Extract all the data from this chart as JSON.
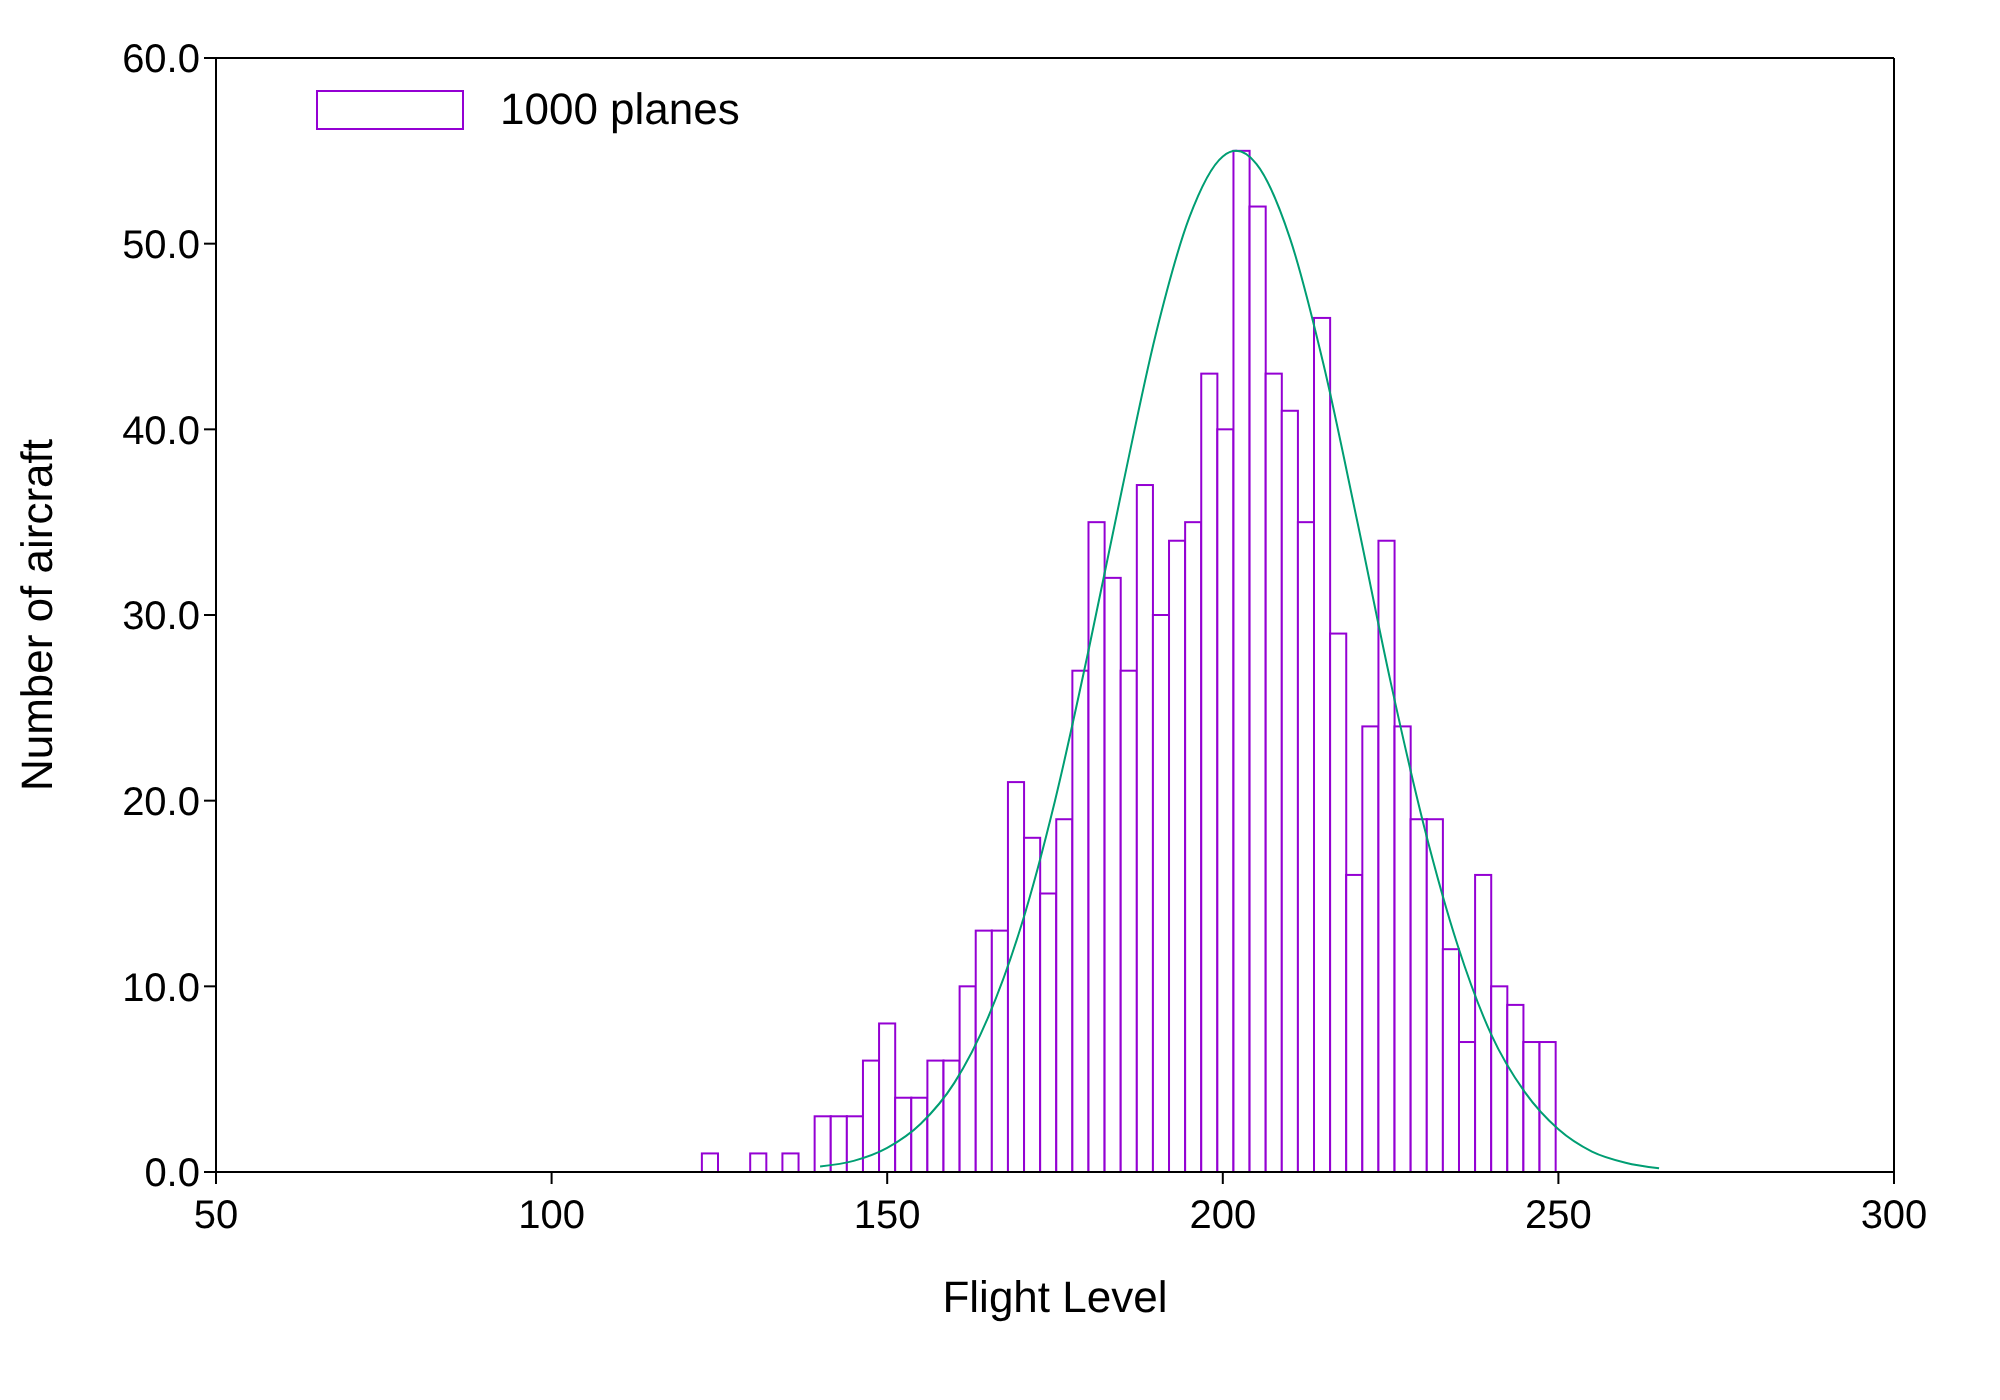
{
  "chart_data": {
    "type": "histogram",
    "xlabel": "Flight Level",
    "ylabel": "Number of aircraft",
    "bins": [
      122.4,
      124.8,
      127.2,
      129.6,
      132,
      134.4,
      136.8,
      139.2,
      141.6,
      144,
      146.4,
      148.8,
      151.2,
      153.6,
      156,
      158.4,
      160.8,
      163.2,
      165.6,
      168,
      170.4,
      172.8,
      175.2,
      177.6,
      180,
      182.4,
      184.8,
      187.2,
      189.6,
      192,
      194.4,
      196.8,
      199.2,
      201.6,
      204,
      206.4,
      208.8,
      211.2,
      213.6,
      216,
      218.4,
      220.8,
      223.2,
      225.6,
      228,
      230.4,
      232.8,
      235.2,
      237.6,
      240,
      242.4,
      244.8,
      247.2,
      249.6
    ],
    "series": [
      {
        "name": "1000 planes",
        "color": "#9400d3",
        "values": [
          1,
          0,
          0,
          1,
          0,
          1,
          0,
          3,
          3,
          3,
          6,
          8,
          4,
          4,
          6,
          6,
          10,
          13,
          13,
          21,
          18,
          15,
          19,
          27,
          35,
          32,
          27,
          37,
          30,
          34,
          35,
          43,
          40,
          55,
          52,
          43,
          41,
          35,
          46,
          29,
          16,
          24,
          34,
          24,
          19,
          19,
          12,
          7,
          16,
          10,
          9,
          7,
          7
        ]
      },
      {
        "type": "line",
        "color": "#009e73",
        "x": [
          140,
          145,
          150,
          155,
          160,
          165,
          170,
          175,
          180,
          185,
          190,
          195,
          200,
          202,
          205,
          210,
          215,
          220,
          225,
          230,
          235,
          240,
          245,
          250,
          255,
          260,
          265
        ],
        "values": [
          0.3,
          0.6,
          1.3,
          2.6,
          4.8,
          8.3,
          13.3,
          20,
          28.1,
          36.8,
          45.1,
          51.4,
          54.7,
          55,
          54.3,
          50.3,
          43.5,
          35.1,
          26.4,
          18.6,
          12.2,
          7.4,
          4.3,
          2.3,
          1.1,
          0.5,
          0.2
        ]
      }
    ],
    "xlim": [
      50,
      300
    ],
    "xticks": [
      50,
      100,
      150,
      200,
      250,
      300
    ],
    "ylim": [
      0,
      60
    ],
    "yticks": [
      {
        "value": 0,
        "label": "0.0"
      },
      {
        "value": 10,
        "label": "10.0"
      },
      {
        "value": 20,
        "label": "20.0"
      },
      {
        "value": 30,
        "label": "30.0"
      },
      {
        "value": 40,
        "label": "40.0"
      },
      {
        "value": 50,
        "label": "50.0"
      },
      {
        "value": 60,
        "label": "60.0"
      }
    ],
    "grid": false,
    "legend": "top left",
    "marker": "none"
  }
}
